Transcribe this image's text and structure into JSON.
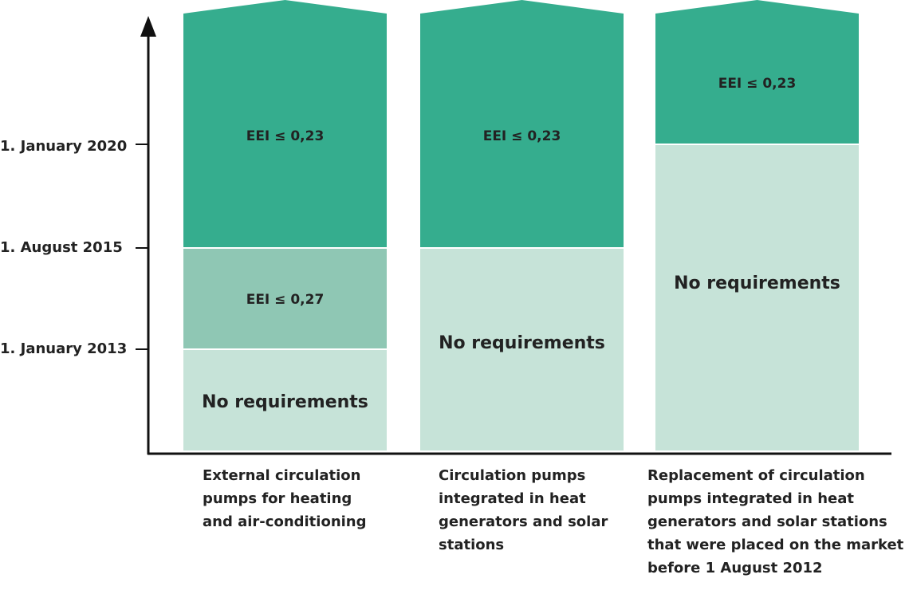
{
  "colors": {
    "dark": "#35ad8e",
    "medium": "#8fc7b4",
    "light": "#c6e3d8",
    "axis": "#111111"
  },
  "axis": {
    "ticks": [
      "1. January 2013",
      "1. August 2015",
      "1. January 2020"
    ]
  },
  "columns": [
    {
      "category": "External circulation pumps for heating and air-conditioning",
      "category_lines": [
        "External circulation",
        "pumps for heating",
        "and air-conditioning"
      ],
      "segments": [
        {
          "label": "No requirements",
          "from": "start",
          "to": "1. January 2013",
          "shade": "light"
        },
        {
          "label": "EEI ≤ 0,27",
          "from": "1. January 2013",
          "to": "1. August 2015",
          "shade": "medium"
        },
        {
          "label": "EEI ≤ 0,23",
          "from": "1. August 2015",
          "to": "open",
          "shade": "dark"
        }
      ]
    },
    {
      "category": "Circulation pumps integrated in heat generators and solar stations",
      "category_lines": [
        "Circulation pumps",
        "integrated in heat",
        "generators and solar",
        "stations"
      ],
      "segments": [
        {
          "label": "No requirements",
          "from": "start",
          "to": "1. August 2015",
          "shade": "light"
        },
        {
          "label": "EEI ≤ 0,23",
          "from": "1. August 2015",
          "to": "open",
          "shade": "dark"
        }
      ]
    },
    {
      "category": "Replacement of circulation pumps integrated in heat generators and solar stations that were placed on the market before 1 August 2012",
      "category_lines": [
        "Replacement of circulation",
        "pumps integrated in heat",
        "generators and solar stations",
        "that were placed on the market",
        "before 1 August 2012"
      ],
      "segments": [
        {
          "label": "No requirements",
          "from": "start",
          "to": "1. January 2020",
          "shade": "light"
        },
        {
          "label": "EEI ≤ 0,23",
          "from": "1. January 2020",
          "to": "open",
          "shade": "dark"
        }
      ]
    }
  ]
}
